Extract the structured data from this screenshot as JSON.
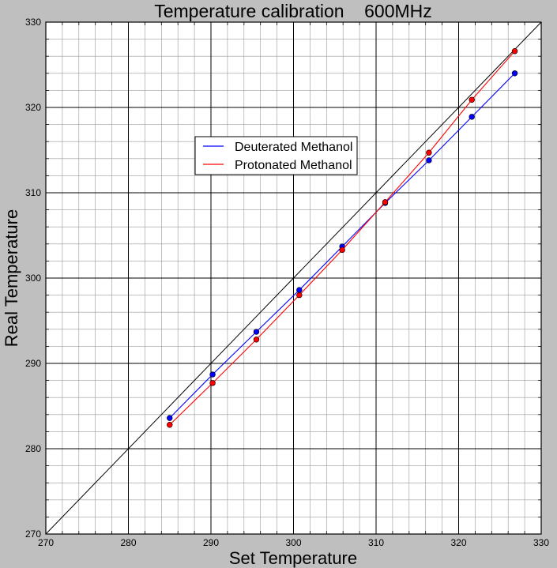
{
  "chart_data": {
    "type": "line",
    "title": "Temperature calibration    600MHz",
    "xlabel": "Set Temperature",
    "ylabel": "Real Temperature",
    "xlim": [
      270,
      330
    ],
    "ylim": [
      270,
      330
    ],
    "xticks": [
      270,
      280,
      290,
      300,
      310,
      320,
      330
    ],
    "yticks": [
      270,
      280,
      290,
      300,
      310,
      320,
      330
    ],
    "grid": "major every 10, minor every 2",
    "legend_position": "upper-left-center",
    "reference_line": {
      "x": [
        270,
        330
      ],
      "y": [
        270,
        330
      ],
      "color": "#000000"
    },
    "series": [
      {
        "name": "Deuterated Methanol",
        "color": "#0000ff",
        "x": [
          285.0,
          290.2,
          295.5,
          300.7,
          305.9,
          311.1,
          316.4,
          321.6,
          326.8
        ],
        "y": [
          283.6,
          288.7,
          293.7,
          298.6,
          303.7,
          308.8,
          313.8,
          318.9,
          324.0
        ]
      },
      {
        "name": "Protonated Methanol",
        "color": "#ff0000",
        "x": [
          285.0,
          290.2,
          295.5,
          300.7,
          305.9,
          311.1,
          316.4,
          321.6,
          326.8
        ],
        "y": [
          282.8,
          287.7,
          292.8,
          298.0,
          303.3,
          308.9,
          314.7,
          320.9,
          326.6
        ]
      }
    ]
  }
}
